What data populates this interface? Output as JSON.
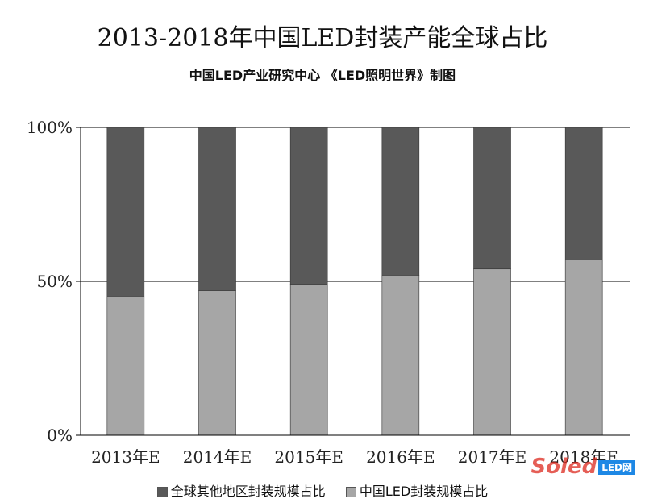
{
  "chart_data": {
    "type": "bar",
    "stacked": true,
    "title": "2013-2018年中国LED封装产能全球占比",
    "subtitle": "中国LED产业研究中心  《LED照明世界》制图",
    "categories": [
      "2013年E",
      "2014年E",
      "2015年E",
      "2016年E",
      "2017年E",
      "2018年E"
    ],
    "series": [
      {
        "name": "中国LED封装规模占比",
        "values": [
          45,
          47,
          49,
          52,
          54,
          57
        ],
        "color": "#a6a6a6"
      },
      {
        "name": "全球其他地区封装规模占比",
        "values": [
          55,
          53,
          51,
          48,
          46,
          43
        ],
        "color": "#595959"
      }
    ],
    "yticks": [
      "0%",
      "50%",
      "100%"
    ],
    "ylim": [
      0,
      100
    ],
    "legend_position": "bottom"
  },
  "watermark": {
    "brand": "Soled",
    "badge": "LED网"
  }
}
